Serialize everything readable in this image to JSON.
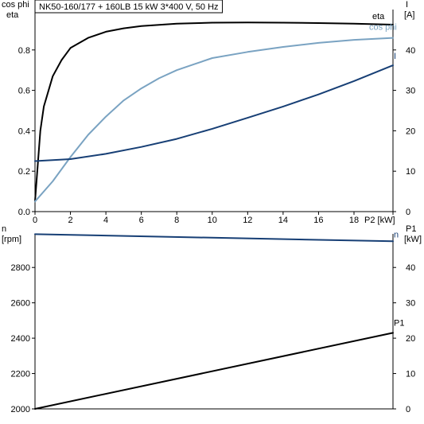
{
  "chart_data": [
    {
      "type": "line",
      "title": "NK50-160/177 + 160LB   15 kW   3*400 V, 50 Hz",
      "xlabel": "P2 [kW]",
      "xlim": [
        0,
        20.2
      ],
      "xticks": [
        0,
        2,
        4,
        6,
        8,
        10,
        12,
        14,
        16,
        18
      ],
      "y_left": {
        "label_top": "cos phi",
        "label_bottom": "eta",
        "lim": [
          0,
          1.0
        ],
        "ticks": [
          "0.0",
          "0.2",
          "0.4",
          "0.6",
          "0.8"
        ],
        "tick_values": [
          0,
          0.2,
          0.4,
          0.6,
          0.8
        ]
      },
      "y_right": {
        "label_top": "I",
        "label_bottom": "[A]",
        "lim": [
          0,
          50
        ],
        "ticks": [
          "0",
          "10",
          "20",
          "30",
          "40"
        ],
        "tick_values": [
          0,
          10,
          20,
          30,
          40
        ]
      },
      "grid": false,
      "series": [
        {
          "name": "eta",
          "axis": "left",
          "color": "#000000",
          "x": [
            0,
            0.3,
            0.5,
            1,
            1.5,
            2,
            3,
            4,
            5,
            6,
            8,
            10,
            12,
            14,
            16,
            18,
            20.2
          ],
          "y": [
            0.05,
            0.4,
            0.52,
            0.67,
            0.75,
            0.81,
            0.86,
            0.89,
            0.907,
            0.918,
            0.93,
            0.935,
            0.936,
            0.935,
            0.933,
            0.93,
            0.925
          ]
        },
        {
          "name": "cos phi",
          "axis": "left",
          "color": "#7aa3c2",
          "x": [
            0,
            1,
            2,
            3,
            4,
            5,
            6,
            7,
            8,
            9,
            10,
            12,
            14,
            16,
            18,
            20.2
          ],
          "y": [
            0.05,
            0.15,
            0.27,
            0.38,
            0.47,
            0.55,
            0.61,
            0.66,
            0.7,
            0.73,
            0.76,
            0.79,
            0.815,
            0.835,
            0.85,
            0.86
          ]
        },
        {
          "name": "I",
          "axis": "right",
          "color": "#173f75",
          "x": [
            0,
            2,
            4,
            6,
            8,
            10,
            12,
            14,
            16,
            18,
            20.2
          ],
          "y": [
            12.5,
            13.0,
            14.3,
            16.0,
            18.0,
            20.5,
            23.2,
            26.0,
            29.0,
            32.3,
            36.2
          ]
        }
      ]
    },
    {
      "type": "line",
      "xlim": [
        0,
        20.2
      ],
      "y_left": {
        "label_top": "n",
        "label_bottom": "[rpm]",
        "lim": [
          2000,
          2990
        ],
        "ticks": [
          "2000",
          "2200",
          "2400",
          "2600",
          "2800"
        ],
        "tick_values": [
          2000,
          2200,
          2400,
          2600,
          2800
        ]
      },
      "y_right": {
        "label_top": "P1",
        "label_bottom": "[kW]",
        "lim": [
          0,
          49.5
        ],
        "ticks": [
          "0",
          "10",
          "20",
          "30",
          "40"
        ],
        "tick_values": [
          0,
          10,
          20,
          30,
          40
        ]
      },
      "grid": false,
      "series": [
        {
          "name": "n",
          "axis": "left",
          "color": "#173f75",
          "x": [
            0,
            20.2
          ],
          "y": [
            2988,
            2948
          ]
        },
        {
          "name": "P1",
          "axis": "right",
          "color": "#000000",
          "x": [
            0,
            20.2
          ],
          "y": [
            0,
            21.5
          ]
        }
      ]
    }
  ]
}
